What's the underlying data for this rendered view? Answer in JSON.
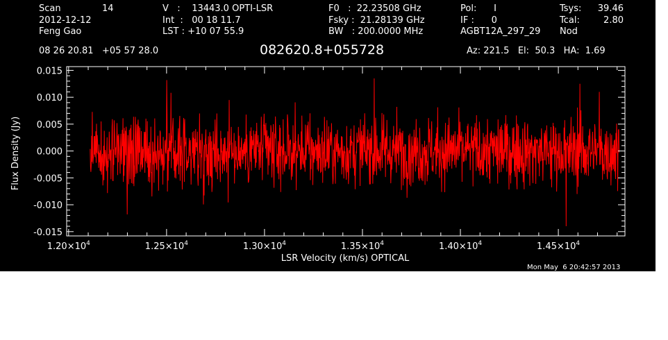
{
  "header": {
    "scan_label": "Scan",
    "scan_value": "14",
    "date": "2012-12-12",
    "observer": "Feng Gao",
    "v_line": "V   :    13443.0 OPTI-LSR",
    "int_line": "Int  :   00 18 11.7",
    "lst_line": "LST : +10 07 55.9",
    "f0_line": "F0   :  22.23508 GHz",
    "fsky_line": "Fsky :  21.28139 GHz",
    "bw_line": "BW   : 200.0000 MHz",
    "pol_line": "Pol:      I",
    "if_line": "IF :      0",
    "project": "AGBT12A_297_29",
    "tsys_label": "Tsys:",
    "tsys_value": "39.46",
    "tcal_label": "Tcal:",
    "tcal_value": "2.80",
    "mode": "Nod",
    "coords": "08 26 20.81   +05 57 28.0",
    "source": "082620.8+055728",
    "pointing": "Az: 221.5   El:  50.3   HA:  1.69"
  },
  "timestamp": "Mon May  6 20:42:57 2013",
  "colors": {
    "background": "#000000",
    "axes": "#ffffff",
    "trace": "#ff0000"
  },
  "chart_data": {
    "type": "line",
    "title": "082620.8+055728",
    "xlabel": "LSR Velocity (km/s) OPTICAL",
    "ylabel": "Flux Density (Jy)",
    "xlim": [
      11990,
      14840
    ],
    "ylim": [
      -0.0158,
      0.0157
    ],
    "x_tick_values": [
      12000,
      12500,
      13000,
      13500,
      14000,
      14500
    ],
    "x_tick_mantissas": [
      "1.20",
      "1.25",
      "1.30",
      "1.35",
      "1.40",
      "1.45"
    ],
    "x_tick_exponent": "4",
    "y_tick_values": [
      0.015,
      0.01,
      0.005,
      0.0,
      -0.005,
      -0.01,
      -0.015
    ],
    "y_tick_labels": [
      "0.015",
      "0.010",
      "0.005",
      "0.000",
      "-0.005",
      "-0.010",
      "-0.015"
    ],
    "x_start": 12110,
    "x_end": 14810,
    "noise_rms": 0.0032,
    "extremes": [
      {
        "x": 14540,
        "y": -0.014
      },
      {
        "x": 12300,
        "y": -0.0118
      },
      {
        "x": 14610,
        "y": 0.0125
      },
      {
        "x": 12500,
        "y": 0.0132
      },
      {
        "x": 13560,
        "y": 0.0135
      },
      {
        "x": 14710,
        "y": 0.011
      }
    ],
    "series": [
      {
        "name": "",
        "color": "#ff0000",
        "values": []
      }
    ]
  }
}
